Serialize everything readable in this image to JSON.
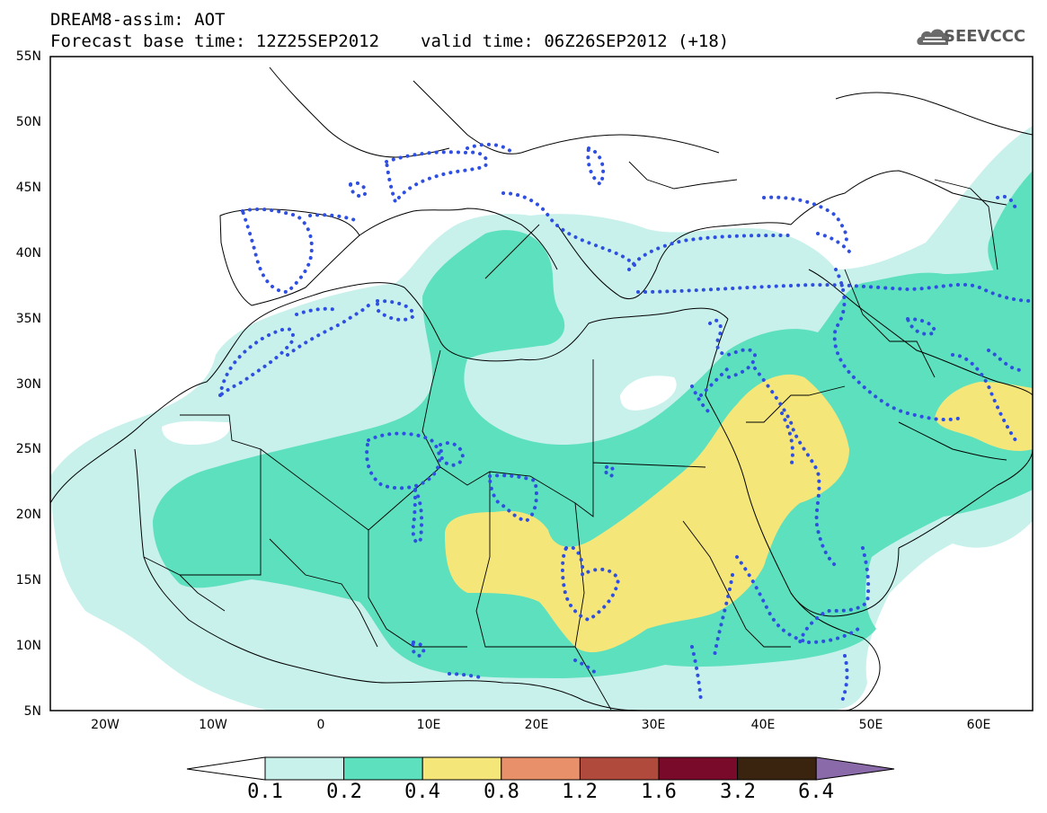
{
  "header": {
    "title_line1": "DREAM8-assim: AOT",
    "base_label": "Forecast base time: 12Z25SEP2012",
    "valid_label": "valid time: 06Z26SEP2012 (+18)",
    "logo_text": "SEEVCCC"
  },
  "map": {
    "lon_range": [
      -25,
      65
    ],
    "lat_range": [
      5,
      55
    ],
    "lat_ticks": [
      "55N",
      "50N",
      "45N",
      "40N",
      "35N",
      "30N",
      "25N",
      "20N",
      "15N",
      "10N",
      "5N"
    ],
    "lon_ticks": [
      "20W",
      "10W",
      "0",
      "10E",
      "20E",
      "30E",
      "40E",
      "50E",
      "60E"
    ],
    "contour_color": "#2f4fe0",
    "coastline_color": "#000000"
  },
  "colorbar": {
    "labels": [
      "0.1",
      "0.2",
      "0.4",
      "0.8",
      "1.2",
      "1.6",
      "3.2",
      "6.4"
    ],
    "colors": [
      "#ffffff",
      "#c8f1ec",
      "#5de0bd",
      "#f5e67a",
      "#e8906a",
      "#b04a3c",
      "#7a0a2a",
      "#3a2410",
      "#8a6aa8"
    ]
  }
}
